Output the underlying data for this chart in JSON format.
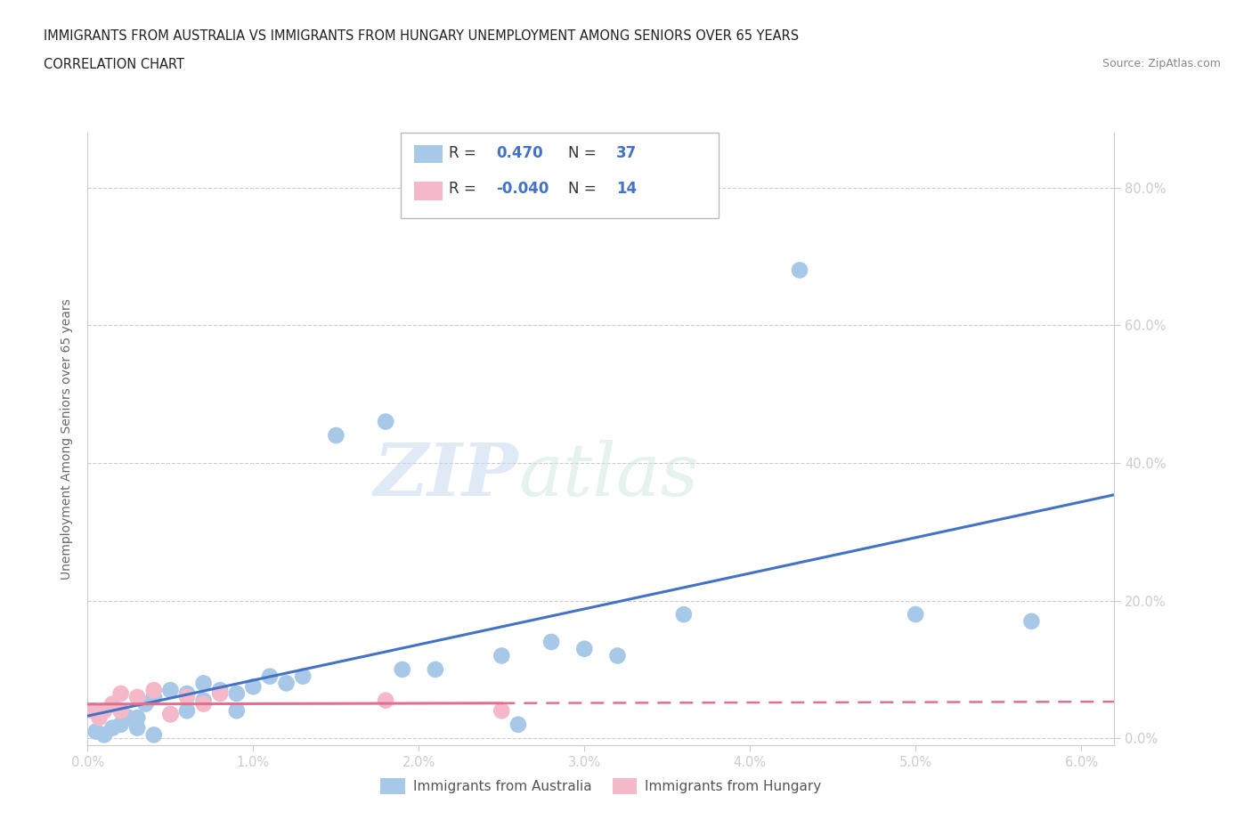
{
  "title_line1": "IMMIGRANTS FROM AUSTRALIA VS IMMIGRANTS FROM HUNGARY UNEMPLOYMENT AMONG SENIORS OVER 65 YEARS",
  "title_line2": "CORRELATION CHART",
  "source_text": "Source: ZipAtlas.com",
  "ylabel": "Unemployment Among Seniors over 65 years",
  "xlim": [
    0.0,
    0.062
  ],
  "ylim": [
    -0.01,
    0.88
  ],
  "xtick_labels": [
    "0.0%",
    "1.0%",
    "2.0%",
    "3.0%",
    "4.0%",
    "5.0%",
    "6.0%"
  ],
  "xtick_values": [
    0.0,
    0.01,
    0.02,
    0.03,
    0.04,
    0.05,
    0.06
  ],
  "ytick_labels": [
    "0.0%",
    "20.0%",
    "40.0%",
    "60.0%",
    "80.0%"
  ],
  "ytick_values": [
    0.0,
    0.2,
    0.4,
    0.6,
    0.8
  ],
  "australia_R": 0.47,
  "australia_N": 37,
  "hungary_R": -0.04,
  "hungary_N": 14,
  "australia_color": "#a8c8e8",
  "hungary_color": "#f4b8c8",
  "australia_line_color": "#4472c4",
  "hungary_line_color": "#e07090",
  "aus_x": [
    0.0005,
    0.001,
    0.0015,
    0.002,
    0.002,
    0.0025,
    0.003,
    0.003,
    0.0035,
    0.004,
    0.004,
    0.005,
    0.005,
    0.006,
    0.006,
    0.007,
    0.007,
    0.008,
    0.009,
    0.009,
    0.01,
    0.011,
    0.012,
    0.013,
    0.015,
    0.018,
    0.019,
    0.021,
    0.025,
    0.026,
    0.028,
    0.03,
    0.032,
    0.036,
    0.043,
    0.05,
    0.057
  ],
  "aus_y": [
    0.01,
    0.005,
    0.015,
    0.02,
    0.04,
    0.03,
    0.015,
    0.03,
    0.05,
    0.005,
    0.06,
    0.035,
    0.07,
    0.04,
    0.065,
    0.055,
    0.08,
    0.07,
    0.04,
    0.065,
    0.075,
    0.09,
    0.08,
    0.09,
    0.44,
    0.46,
    0.1,
    0.1,
    0.12,
    0.02,
    0.14,
    0.13,
    0.12,
    0.18,
    0.68,
    0.18,
    0.17
  ],
  "hun_x": [
    0.0003,
    0.0007,
    0.001,
    0.0015,
    0.002,
    0.002,
    0.003,
    0.004,
    0.005,
    0.006,
    0.007,
    0.008,
    0.018,
    0.025
  ],
  "hun_y": [
    0.04,
    0.03,
    0.04,
    0.05,
    0.065,
    0.04,
    0.06,
    0.07,
    0.035,
    0.06,
    0.05,
    0.065,
    0.055,
    0.04
  ],
  "watermark_text1": "ZIP",
  "watermark_text2": "atlas",
  "background_color": "#ffffff",
  "grid_color": "#cccccc",
  "title_fontsize": 10.5,
  "axis_label_fontsize": 10,
  "tick_fontsize": 10.5
}
